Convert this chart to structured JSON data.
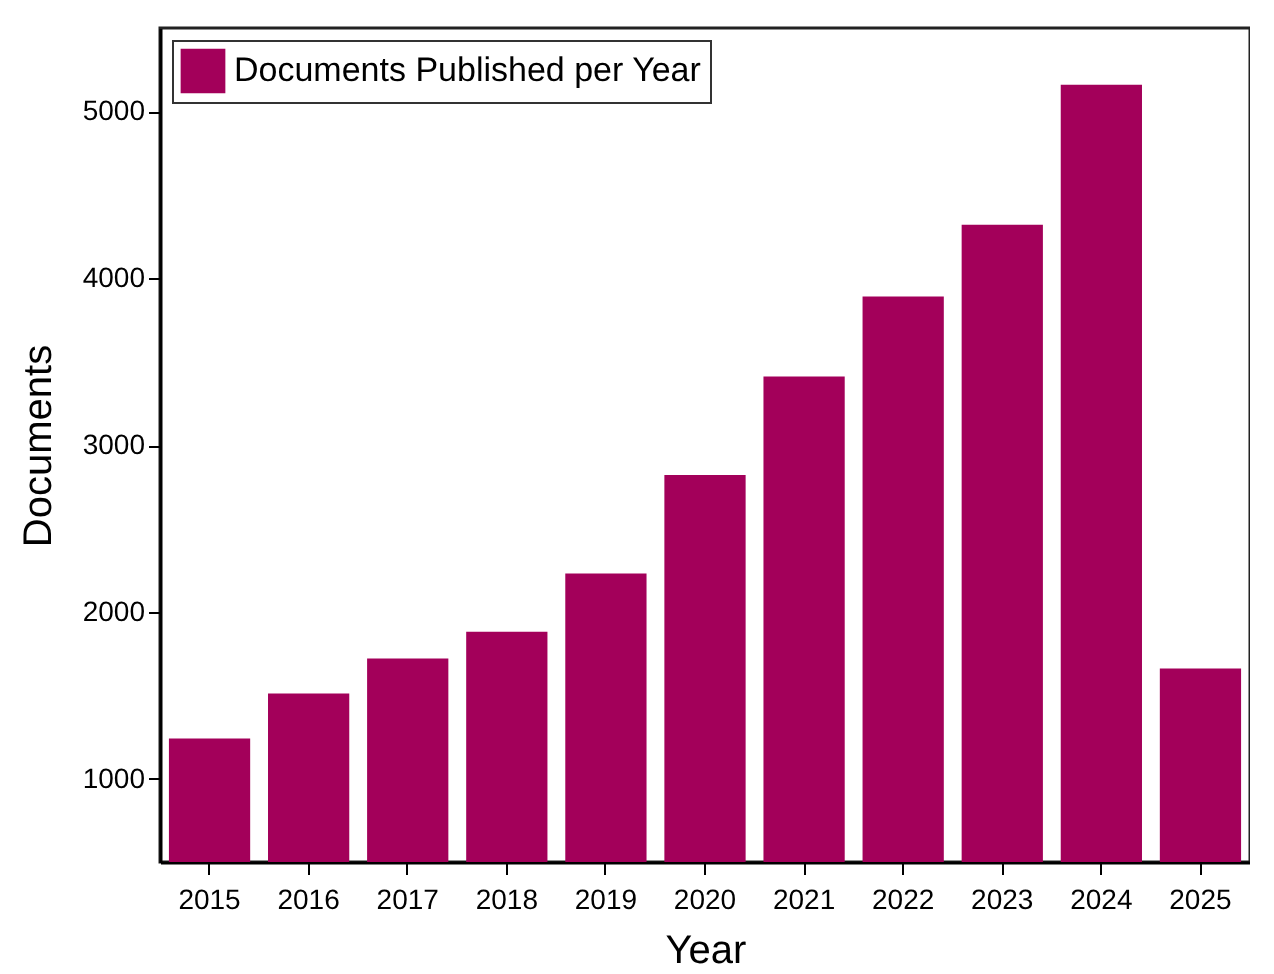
{
  "chart_data": {
    "type": "bar",
    "xlabel": "Year",
    "ylabel": "Documents",
    "categories": [
      "2015",
      "2016",
      "2017",
      "2018",
      "2019",
      "2020",
      "2021",
      "2022",
      "2023",
      "2024",
      "2025"
    ],
    "series": [
      {
        "name": "Documents Published per Year",
        "color": "#a3005a",
        "values": [
          1240,
          1510,
          1720,
          1880,
          2230,
          2820,
          3410,
          3890,
          4320,
          5160,
          1660
        ]
      }
    ],
    "ylim": [
      500,
      5500
    ],
    "yticks": [
      1000,
      2000,
      3000,
      4000,
      5000
    ],
    "grid": false,
    "legend": "top left"
  }
}
